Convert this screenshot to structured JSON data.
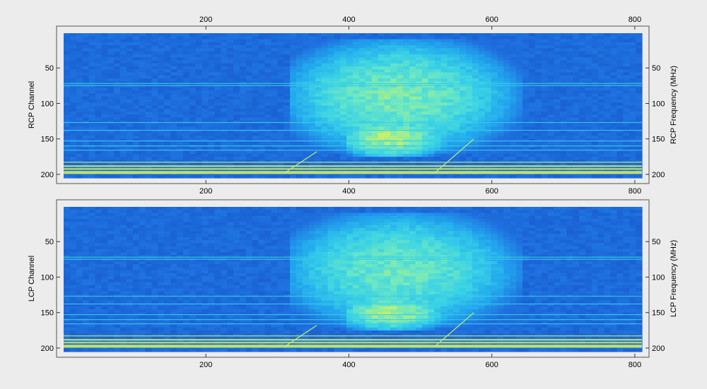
{
  "chart_data": [
    {
      "type": "heatmap",
      "id": "rcp",
      "ylabel_left": "RCP  Channel",
      "ylabel_right": "RCP  Frequency (MHz)",
      "xlim": [
        1,
        810
      ],
      "ylim": [
        1,
        205
      ],
      "x_ticks_top": [
        200,
        400,
        600,
        800
      ],
      "x_ticks_bottom": [
        200,
        400,
        600,
        800
      ],
      "y_ticks_left": [
        50,
        100,
        150,
        200
      ],
      "y_ticks_right": [
        50,
        100,
        150,
        200
      ],
      "colormap": [
        "#0b2a8c",
        "#1550c8",
        "#1f74e0",
        "#22a8ee",
        "#3ad2e6",
        "#6ee8c2",
        "#c4f06a",
        "#f2e84a"
      ],
      "background_level": 0.25,
      "burst_regions": [
        {
          "x_start": 320,
          "x_end": 640,
          "y_start": 10,
          "y_end": 170,
          "peak_x": 470,
          "peak_y": 90,
          "level": 0.75
        },
        {
          "x_start": 400,
          "x_end": 560,
          "y_start": 120,
          "y_end": 175,
          "peak_x": 460,
          "peak_y": 150,
          "level": 0.85
        }
      ],
      "rfi_channels": [
        72,
        75,
        127,
        138,
        153,
        160,
        166,
        183,
        188,
        192,
        196,
        198
      ],
      "drift_lines": [
        {
          "x0": 310,
          "y0": 198,
          "x1": 355,
          "y1": 168
        },
        {
          "x0": 520,
          "y0": 198,
          "x1": 575,
          "y1": 150
        }
      ]
    },
    {
      "type": "heatmap",
      "id": "lcp",
      "ylabel_left": "LCP  Channel",
      "ylabel_right": "LCP  Frequency (MHz)",
      "xlim": [
        1,
        810
      ],
      "ylim": [
        1,
        205
      ],
      "x_ticks_top": [],
      "x_ticks_bottom": [
        200,
        400,
        600,
        800
      ],
      "y_ticks_left": [
        50,
        100,
        150,
        200
      ],
      "y_ticks_right": [
        50,
        100,
        150,
        200
      ],
      "colormap": [
        "#0b2a8c",
        "#1550c8",
        "#1f74e0",
        "#22a8ee",
        "#3ad2e6",
        "#6ee8c2",
        "#c4f06a",
        "#f2e84a"
      ],
      "background_level": 0.25,
      "burst_regions": [
        {
          "x_start": 320,
          "x_end": 640,
          "y_start": 10,
          "y_end": 170,
          "peak_x": 470,
          "peak_y": 90,
          "level": 0.72
        },
        {
          "x_start": 400,
          "x_end": 560,
          "y_start": 120,
          "y_end": 175,
          "peak_x": 460,
          "peak_y": 150,
          "level": 0.82
        }
      ],
      "rfi_channels": [
        72,
        75,
        127,
        138,
        153,
        160,
        166,
        183,
        188,
        192,
        196,
        198
      ],
      "drift_lines": [
        {
          "x0": 310,
          "y0": 198,
          "x1": 355,
          "y1": 168
        },
        {
          "x0": 520,
          "y0": 198,
          "x1": 575,
          "y1": 150
        }
      ]
    }
  ]
}
